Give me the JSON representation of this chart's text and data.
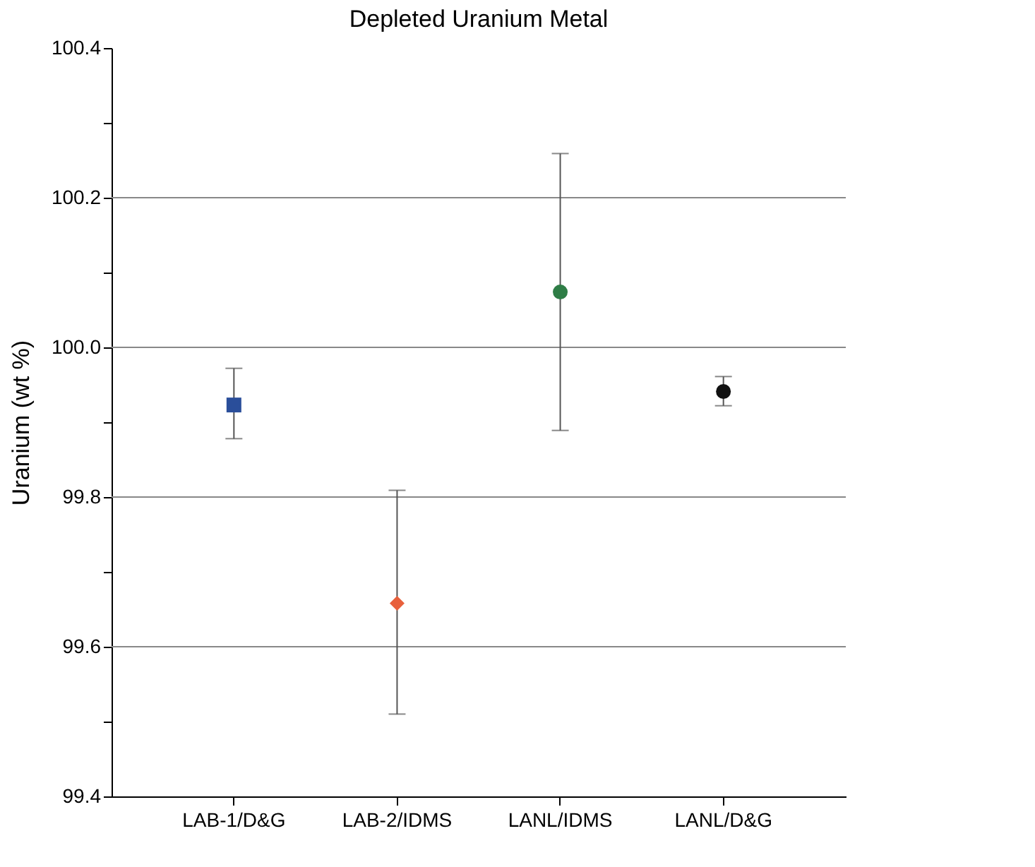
{
  "chart_data": {
    "type": "scatter",
    "title": "Depleted Uranium Metal",
    "ylabel": "Uranium (wt %)",
    "categories": [
      "LAB-1/D&G",
      "LAB-2/IDMS",
      "LANL/IDMS",
      "LANL/D&G"
    ],
    "series": [
      {
        "x": [
          "LAB-1/D&G"
        ],
        "values": [
          99.923
        ],
        "errors": [
          [
            99.878,
            99.972
          ]
        ],
        "color": "#2a4e9a",
        "marker": "square"
      },
      {
        "x": [
          "LAB-2/IDMS"
        ],
        "values": [
          99.658
        ],
        "errors": [
          [
            99.51,
            99.809
          ]
        ],
        "color": "#e8603c",
        "marker": "diamond"
      },
      {
        "x": [
          "LANL/IDMS"
        ],
        "values": [
          100.074
        ],
        "errors": [
          [
            99.889,
            100.259
          ]
        ],
        "color": "#2e7d46",
        "marker": "circle"
      },
      {
        "x": [
          "LANL/D&G"
        ],
        "values": [
          99.941
        ],
        "errors": [
          [
            99.922,
            99.961
          ]
        ],
        "color": "#111111",
        "marker": "circle"
      }
    ],
    "ylim": [
      99.4,
      100.4
    ],
    "yticks": [
      {
        "value": 99.4,
        "label": "99.4"
      },
      {
        "value": 99.5,
        "label": null
      },
      {
        "value": 99.6,
        "label": "99.6"
      },
      {
        "value": 99.7,
        "label": null
      },
      {
        "value": 99.8,
        "label": "99.8"
      },
      {
        "value": 99.9,
        "label": null
      },
      {
        "value": 100.0,
        "label": "100.0"
      },
      {
        "value": 100.1,
        "label": null
      },
      {
        "value": 100.2,
        "label": "100.2"
      },
      {
        "value": 100.3,
        "label": null
      },
      {
        "value": 100.4,
        "label": "100.4"
      }
    ],
    "grid": "y",
    "legend": false
  }
}
